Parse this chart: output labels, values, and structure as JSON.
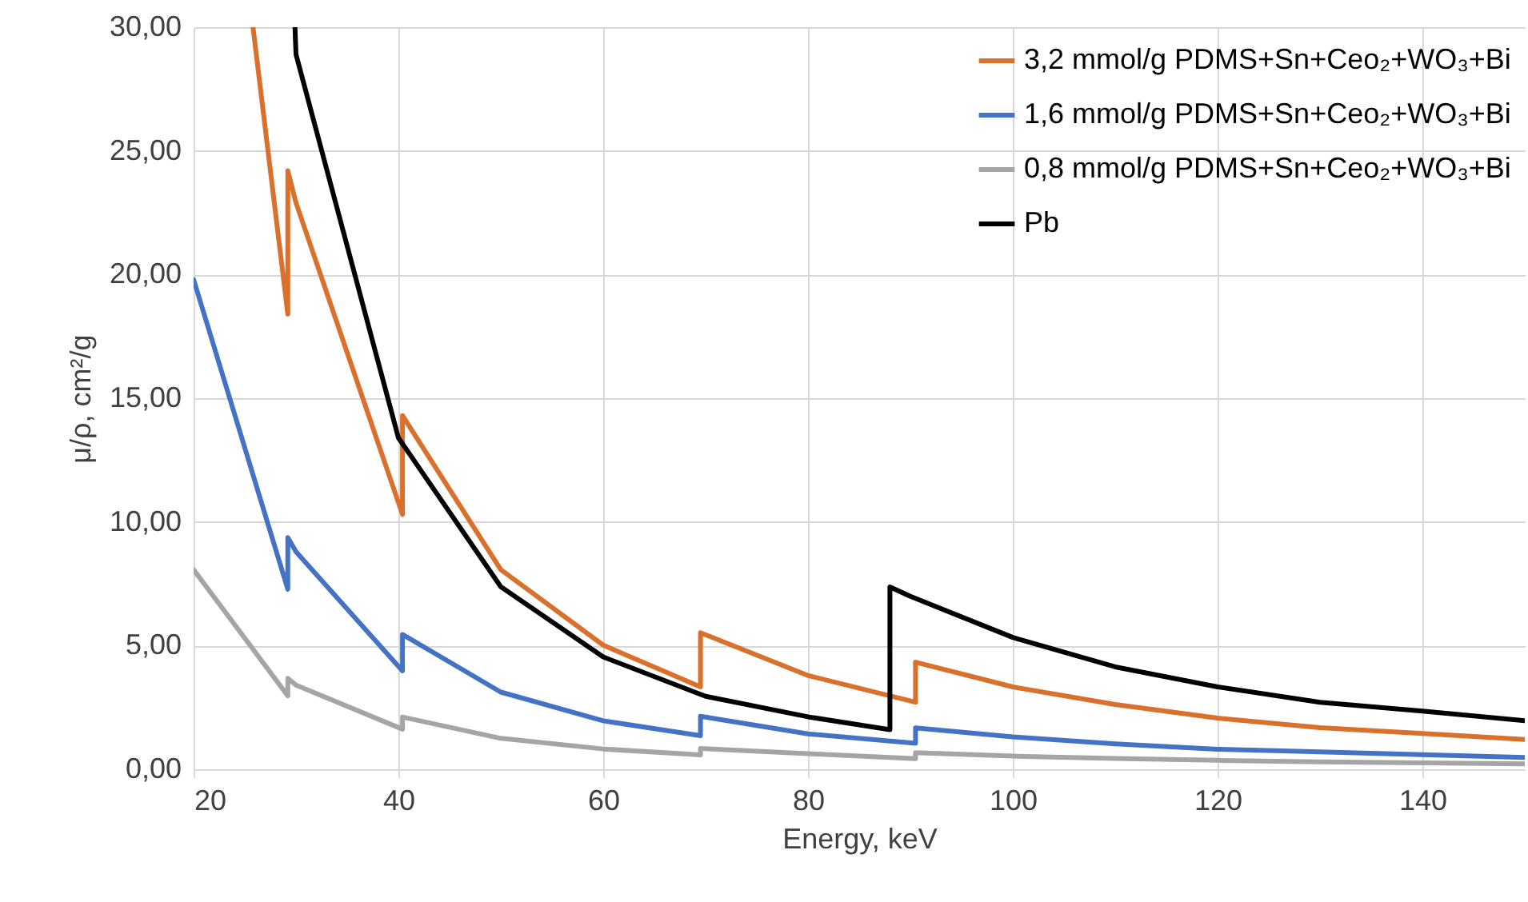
{
  "chart_data": {
    "type": "line",
    "xlabel": "Energy, keV",
    "ylabel": "μ/ρ, cm²/g",
    "xlim": [
      20,
      150
    ],
    "xticks": [
      20,
      40,
      60,
      80,
      100,
      120,
      140
    ],
    "ylim": [
      0,
      30
    ],
    "yticks": [
      {
        "value": 0,
        "label": "0,00"
      },
      {
        "value": 5,
        "label": "5,00"
      },
      {
        "value": 10,
        "label": "10,00"
      },
      {
        "value": 15,
        "label": "15,00"
      },
      {
        "value": 20,
        "label": "20,00"
      },
      {
        "value": 25,
        "label": "25,00"
      },
      {
        "value": 30,
        "label": "30,00"
      }
    ],
    "grid": true,
    "legend": "top right",
    "marker": "none",
    "line_style": "solid",
    "series": [
      {
        "name": "3,2 mmol/g PDMS+Sn+Ceo₂+WO₃+Bi",
        "color": "#d9702b",
        "x": [
          25.8,
          29.2,
          29.2,
          30,
          40.4,
          40.4,
          50,
          60,
          69.5,
          69.5,
          80,
          90.5,
          90.5,
          100,
          110,
          120,
          130,
          140,
          150
        ],
        "values": [
          30,
          18.4,
          24.2,
          22.9,
          10.3,
          14.3,
          8.07,
          5.02,
          3.33,
          5.52,
          3.79,
          2.71,
          4.33,
          3.33,
          2.62,
          2.07,
          1.68,
          1.45,
          1.2
        ]
      },
      {
        "name": "1,6 mmol/g PDMS+Sn+Ceo₂+WO₃+Bi",
        "color": "#4472c4",
        "x": [
          20,
          29.2,
          29.2,
          30,
          40.4,
          40.4,
          50,
          60,
          69.5,
          69.5,
          80,
          90.5,
          90.5,
          100,
          110,
          120,
          130,
          140,
          150
        ],
        "values": [
          19.8,
          7.28,
          9.37,
          8.79,
          3.98,
          5.45,
          3.12,
          1.96,
          1.36,
          2.14,
          1.43,
          1.05,
          1.67,
          1.31,
          1.03,
          0.81,
          0.7,
          0.59,
          0.48
        ]
      },
      {
        "name": "0,8 mmol/g PDMS+Sn+Ceo₂+WO₃+Bi",
        "color": "#a5a5a5",
        "x": [
          20,
          29.2,
          29.2,
          30,
          40.4,
          40.4,
          50,
          60,
          69.5,
          69.5,
          80,
          90.5,
          90.5,
          100,
          110,
          120,
          130,
          140,
          150
        ],
        "values": [
          8.07,
          2.97,
          3.68,
          3.4,
          1.62,
          2.11,
          1.25,
          0.82,
          0.58,
          0.84,
          0.63,
          0.43,
          0.67,
          0.53,
          0.44,
          0.36,
          0.3,
          0.26,
          0.22
        ]
      },
      {
        "name": "Pb",
        "color": "#000000",
        "x": [
          29.9,
          30,
          40,
          50,
          60,
          70,
          80,
          88,
          88,
          90,
          100,
          110,
          120,
          130,
          140,
          150
        ],
        "values": [
          30,
          28.9,
          13.4,
          7.38,
          4.54,
          2.95,
          2.12,
          1.6,
          7.37,
          6.99,
          5.33,
          4.14,
          3.33,
          2.71,
          2.35,
          1.96
        ]
      }
    ]
  }
}
